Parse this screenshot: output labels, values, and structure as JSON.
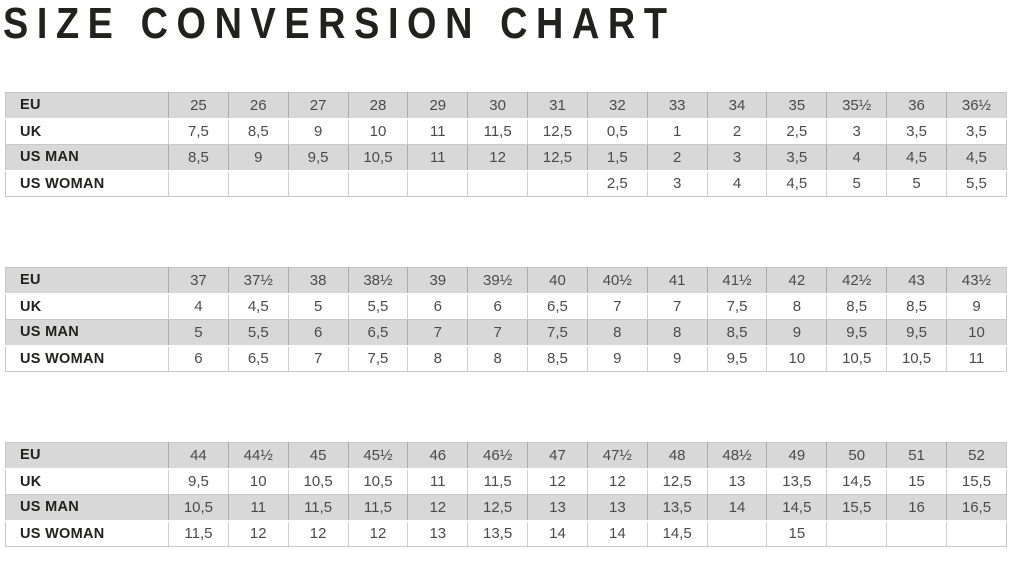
{
  "title": "SIZE CONVERSION CHART",
  "colors": {
    "row_shaded": "#d8d8d8",
    "row_plain": "#ffffff",
    "grid_line": "#a9a9a9",
    "title_text": "#21211f",
    "value_text": "#4b4b4b"
  },
  "chart_data": [
    {
      "type": "table",
      "rows": [
        {
          "label": "EU",
          "values": [
            "25",
            "26",
            "27",
            "28",
            "29",
            "30",
            "31",
            "32",
            "33",
            "34",
            "35",
            "35½",
            "36",
            "36½"
          ]
        },
        {
          "label": "UK",
          "values": [
            "7,5",
            "8,5",
            "9",
            "10",
            "11",
            "11,5",
            "12,5",
            "0,5",
            "1",
            "2",
            "2,5",
            "3",
            "3,5",
            "3,5"
          ]
        },
        {
          "label": "US MAN",
          "values": [
            "8,5",
            "9",
            "9,5",
            "10,5",
            "11",
            "12",
            "12,5",
            "1,5",
            "2",
            "3",
            "3,5",
            "4",
            "4,5",
            "4,5"
          ]
        },
        {
          "label": "US WOMAN",
          "values": [
            "",
            "",
            "",
            "",
            "",
            "",
            "",
            "2,5",
            "3",
            "4",
            "4,5",
            "5",
            "5",
            "5,5"
          ]
        }
      ]
    },
    {
      "type": "table",
      "rows": [
        {
          "label": "EU",
          "values": [
            "37",
            "37½",
            "38",
            "38½",
            "39",
            "39½",
            "40",
            "40½",
            "41",
            "41½",
            "42",
            "42½",
            "43",
            "43½"
          ]
        },
        {
          "label": "UK",
          "values": [
            "4",
            "4,5",
            "5",
            "5,5",
            "6",
            "6",
            "6,5",
            "7",
            "7",
            "7,5",
            "8",
            "8,5",
            "8,5",
            "9"
          ]
        },
        {
          "label": "US MAN",
          "values": [
            "5",
            "5,5",
            "6",
            "6,5",
            "7",
            "7",
            "7,5",
            "8",
            "8",
            "8,5",
            "9",
            "9,5",
            "9,5",
            "10"
          ]
        },
        {
          "label": "US WOMAN",
          "values": [
            "6",
            "6,5",
            "7",
            "7,5",
            "8",
            "8",
            "8,5",
            "9",
            "9",
            "9,5",
            "10",
            "10,5",
            "10,5",
            "11"
          ]
        }
      ]
    },
    {
      "type": "table",
      "rows": [
        {
          "label": "EU",
          "values": [
            "44",
            "44½",
            "45",
            "45½",
            "46",
            "46½",
            "47",
            "47½",
            "48",
            "48½",
            "49",
            "50",
            "51",
            "52"
          ]
        },
        {
          "label": "UK",
          "values": [
            "9,5",
            "10",
            "10,5",
            "10,5",
            "11",
            "11,5",
            "12",
            "12",
            "12,5",
            "13",
            "13,5",
            "14,5",
            "15",
            "15,5"
          ]
        },
        {
          "label": "US MAN",
          "values": [
            "10,5",
            "11",
            "11,5",
            "11,5",
            "12",
            "12,5",
            "13",
            "13",
            "13,5",
            "14",
            "14,5",
            "15,5",
            "16",
            "16,5"
          ]
        },
        {
          "label": "US WOMAN",
          "values": [
            "11,5",
            "12",
            "12",
            "12",
            "13",
            "13,5",
            "14",
            "14",
            "14,5",
            "",
            "15",
            "",
            "",
            ""
          ]
        }
      ]
    }
  ]
}
